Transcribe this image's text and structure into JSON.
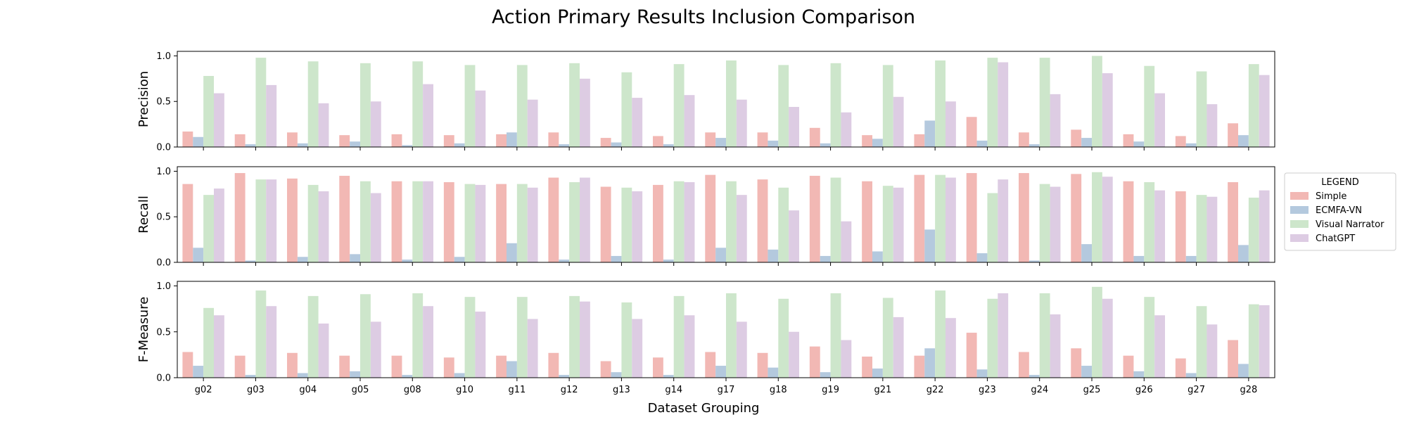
{
  "chart_data": {
    "type": "bar",
    "title": "Action Primary Results Inclusion Comparison",
    "xlabel": "Dataset Grouping",
    "categories": [
      "g02",
      "g03",
      "g04",
      "g05",
      "g08",
      "g10",
      "g11",
      "g12",
      "g13",
      "g14",
      "g17",
      "g18",
      "g19",
      "g21",
      "g22",
      "g23",
      "g24",
      "g25",
      "g26",
      "g27",
      "g28"
    ],
    "ylim": [
      0,
      1.05
    ],
    "yticks": [
      "0.0",
      "0.5",
      "1.0"
    ],
    "legend": {
      "title": "LEGEND",
      "placement": "right",
      "entries": [
        {
          "name": "Simple",
          "color": "#f2b8b4"
        },
        {
          "name": "ECMFA-VN",
          "color": "#b4c9de"
        },
        {
          "name": "Visual Narrator",
          "color": "#cde6cb"
        },
        {
          "name": "ChatGPT",
          "color": "#ddcce3"
        }
      ]
    },
    "panels": [
      {
        "ylabel": "Precision",
        "series": [
          {
            "name": "Simple",
            "values": [
              0.17,
              0.14,
              0.16,
              0.13,
              0.14,
              0.13,
              0.14,
              0.16,
              0.1,
              0.12,
              0.16,
              0.16,
              0.21,
              0.13,
              0.14,
              0.33,
              0.16,
              0.19,
              0.14,
              0.12,
              0.26
            ]
          },
          {
            "name": "ECMFA-VN",
            "values": [
              0.11,
              0.03,
              0.04,
              0.06,
              0.02,
              0.04,
              0.16,
              0.03,
              0.05,
              0.03,
              0.1,
              0.07,
              0.04,
              0.09,
              0.29,
              0.07,
              0.03,
              0.1,
              0.06,
              0.04,
              0.13
            ]
          },
          {
            "name": "Visual Narrator",
            "values": [
              0.78,
              0.98,
              0.94,
              0.92,
              0.94,
              0.9,
              0.9,
              0.92,
              0.82,
              0.91,
              0.95,
              0.9,
              0.92,
              0.9,
              0.95,
              0.98,
              0.98,
              1.0,
              0.89,
              0.83,
              0.91
            ]
          },
          {
            "name": "ChatGPT",
            "values": [
              0.59,
              0.68,
              0.48,
              0.5,
              0.69,
              0.62,
              0.52,
              0.75,
              0.54,
              0.57,
              0.52,
              0.44,
              0.38,
              0.55,
              0.5,
              0.93,
              0.58,
              0.81,
              0.59,
              0.47,
              0.79
            ]
          }
        ]
      },
      {
        "ylabel": "Recall",
        "series": [
          {
            "name": "Simple",
            "values": [
              0.86,
              0.98,
              0.92,
              0.95,
              0.89,
              0.88,
              0.86,
              0.93,
              0.83,
              0.85,
              0.96,
              0.91,
              0.95,
              0.89,
              0.96,
              0.98,
              0.98,
              0.97,
              0.89,
              0.78,
              0.88
            ]
          },
          {
            "name": "ECMFA-VN",
            "values": [
              0.16,
              0.02,
              0.06,
              0.09,
              0.03,
              0.06,
              0.21,
              0.03,
              0.07,
              0.03,
              0.16,
              0.14,
              0.07,
              0.12,
              0.36,
              0.1,
              0.02,
              0.2,
              0.07,
              0.07,
              0.19
            ]
          },
          {
            "name": "Visual Narrator",
            "values": [
              0.74,
              0.91,
              0.85,
              0.89,
              0.89,
              0.86,
              0.86,
              0.88,
              0.82,
              0.89,
              0.89,
              0.82,
              0.93,
              0.84,
              0.96,
              0.76,
              0.86,
              0.99,
              0.88,
              0.74,
              0.71
            ]
          },
          {
            "name": "ChatGPT",
            "values": [
              0.81,
              0.91,
              0.78,
              0.76,
              0.89,
              0.85,
              0.82,
              0.93,
              0.78,
              0.88,
              0.74,
              0.57,
              0.45,
              0.82,
              0.93,
              0.91,
              0.83,
              0.94,
              0.79,
              0.72,
              0.79
            ]
          }
        ]
      },
      {
        "ylabel": "F-Measure",
        "series": [
          {
            "name": "Simple",
            "values": [
              0.28,
              0.24,
              0.27,
              0.24,
              0.24,
              0.22,
              0.24,
              0.27,
              0.18,
              0.22,
              0.28,
              0.27,
              0.34,
              0.23,
              0.24,
              0.49,
              0.28,
              0.32,
              0.24,
              0.21,
              0.41
            ]
          },
          {
            "name": "ECMFA-VN",
            "values": [
              0.13,
              0.03,
              0.05,
              0.07,
              0.03,
              0.05,
              0.18,
              0.03,
              0.06,
              0.03,
              0.13,
              0.11,
              0.06,
              0.1,
              0.32,
              0.09,
              0.03,
              0.13,
              0.07,
              0.05,
              0.15
            ]
          },
          {
            "name": "Visual Narrator",
            "values": [
              0.76,
              0.95,
              0.89,
              0.91,
              0.92,
              0.88,
              0.88,
              0.89,
              0.82,
              0.89,
              0.92,
              0.86,
              0.92,
              0.87,
              0.95,
              0.86,
              0.92,
              0.99,
              0.88,
              0.78,
              0.8
            ]
          },
          {
            "name": "ChatGPT",
            "values": [
              0.68,
              0.78,
              0.59,
              0.61,
              0.78,
              0.72,
              0.64,
              0.83,
              0.64,
              0.68,
              0.61,
              0.5,
              0.41,
              0.66,
              0.65,
              0.92,
              0.69,
              0.86,
              0.68,
              0.58,
              0.79
            ]
          }
        ]
      }
    ]
  }
}
